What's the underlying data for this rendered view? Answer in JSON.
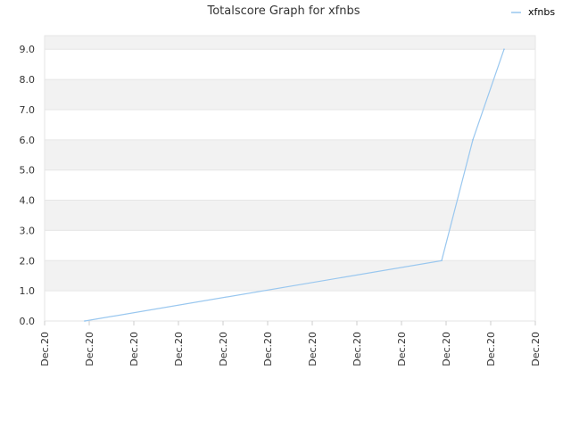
{
  "chart_data": {
    "type": "line",
    "title": "Totalscore Graph for xfnbs",
    "xlabel": "",
    "ylabel": "",
    "x_ticks": [
      "Dec.20",
      "Dec.20",
      "Dec.20",
      "Dec.20",
      "Dec.20",
      "Dec.20",
      "Dec.20",
      "Dec.20",
      "Dec.20",
      "Dec.20",
      "Dec.20",
      "Dec.20"
    ],
    "y_ticks": [
      "0.0",
      "1.0",
      "2.0",
      "3.0",
      "4.0",
      "5.0",
      "6.0",
      "7.0",
      "8.0",
      "9.0"
    ],
    "ylim": [
      0,
      9.45
    ],
    "series": [
      {
        "name": "xfnbs",
        "color": "#99c7ef",
        "points": [
          {
            "x": 0.9,
            "y": 0
          },
          {
            "x": 8.9,
            "y": 2
          },
          {
            "x": 9.6,
            "y": 6
          },
          {
            "x": 10.3,
            "y": 9
          }
        ]
      }
    ],
    "xlim": [
      0,
      11
    ],
    "legend_position": "top-right",
    "grid": true,
    "band_colors": [
      "#f2f2f2",
      "#ffffff"
    ]
  }
}
